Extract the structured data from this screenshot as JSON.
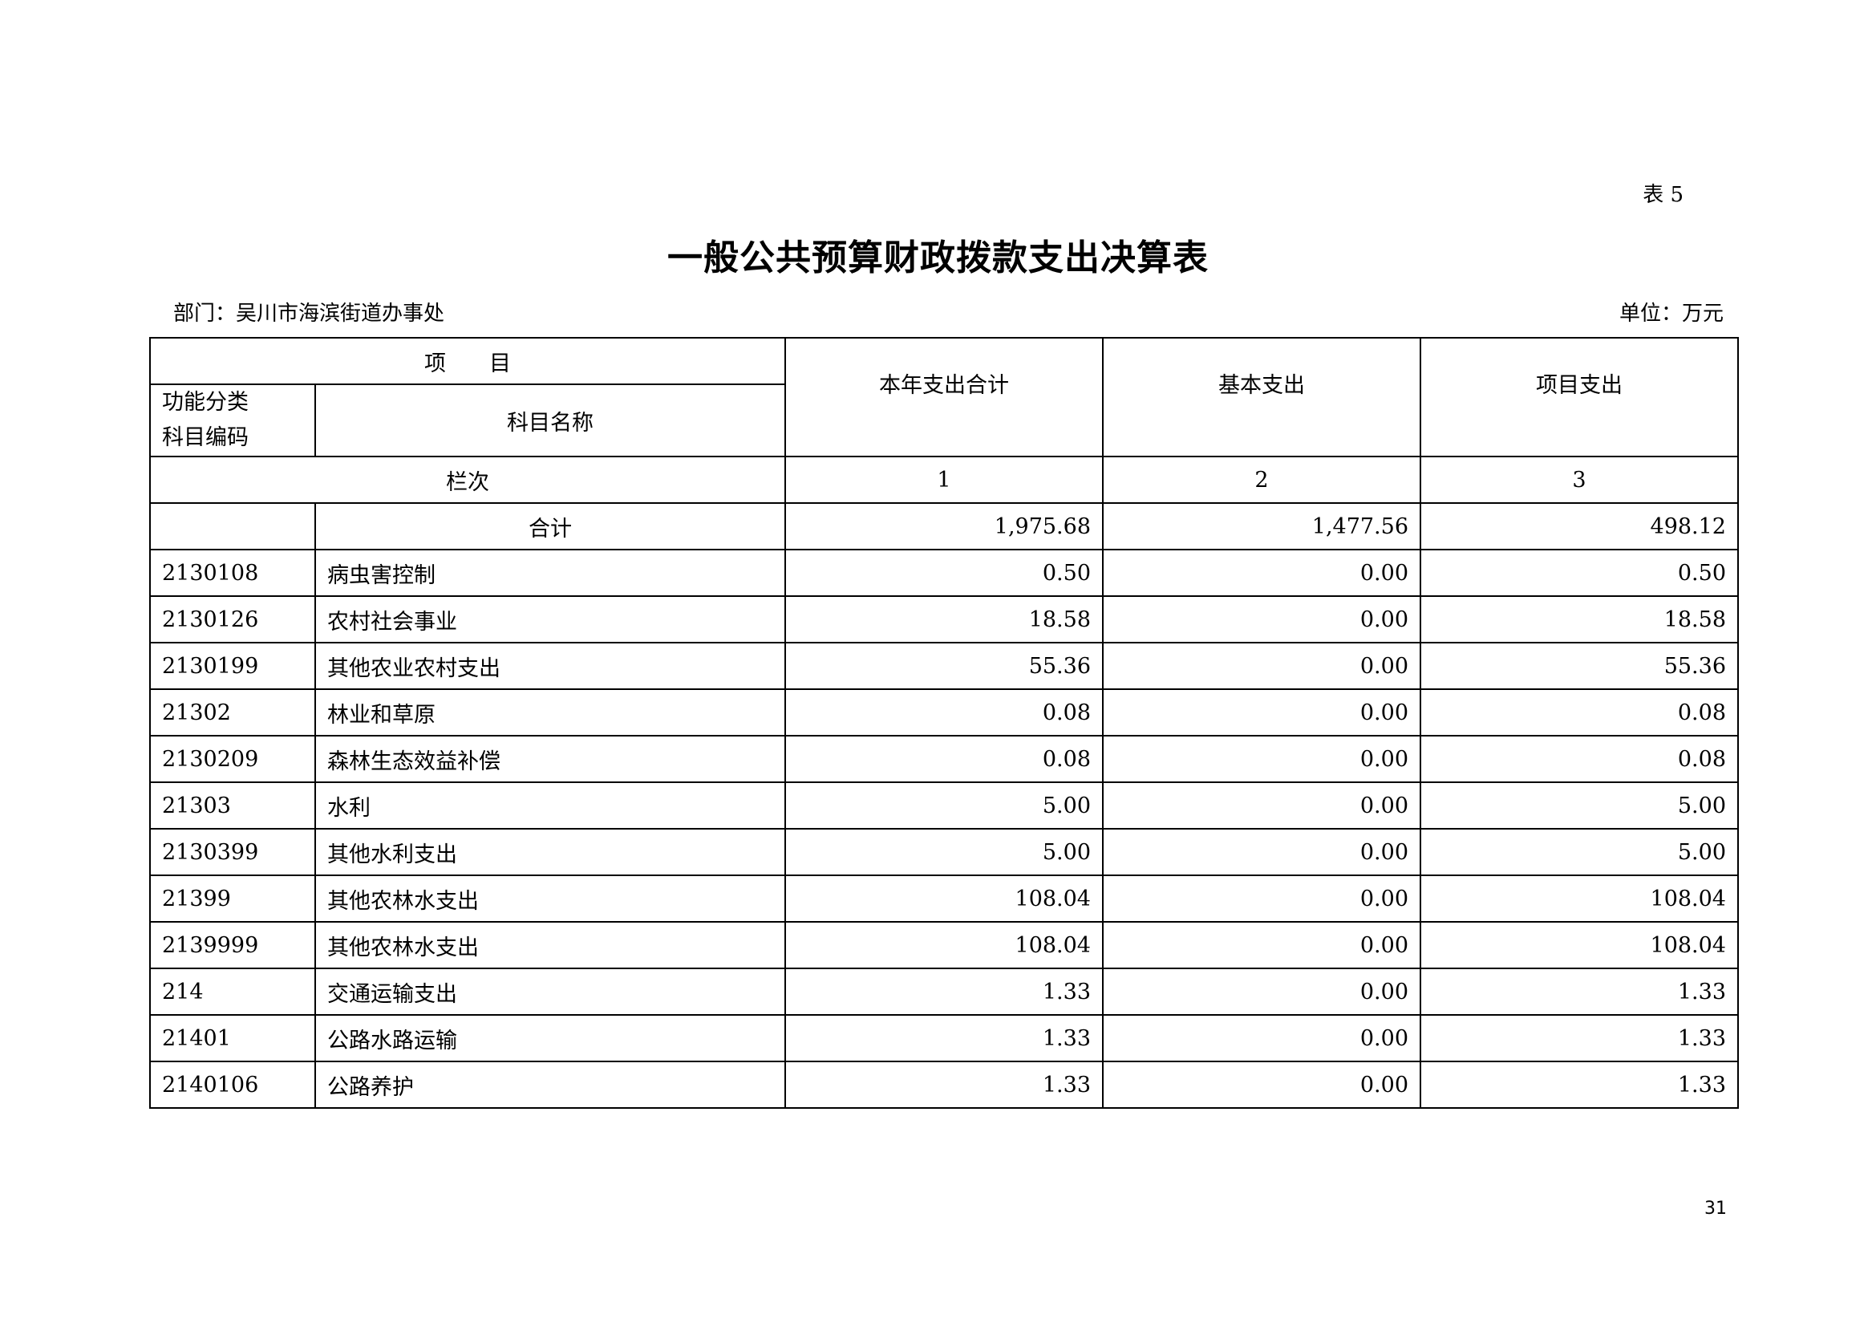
{
  "table_label": "表 5",
  "title": "一般公共预算财政拨款支出决算表",
  "department": "部门：吴川市海滨街道办事处",
  "unit": "单位：万元",
  "header": {
    "item": "项　　目",
    "code_line1": "功能分类",
    "code_line2": "科目编码",
    "name": "科目名称",
    "total": "本年支出合计",
    "basic": "基本支出",
    "project": "项目支出",
    "row_index_label": "栏次",
    "col1": "1",
    "col2": "2",
    "col3": "3"
  },
  "total_row": {
    "label": "合计",
    "total": "1,975.68",
    "basic": "1,477.56",
    "project": "498.12"
  },
  "rows": [
    {
      "code": "2130108",
      "name": "病虫害控制",
      "total": "0.50",
      "basic": "0.00",
      "project": "0.50"
    },
    {
      "code": "2130126",
      "name": "农村社会事业",
      "total": "18.58",
      "basic": "0.00",
      "project": "18.58"
    },
    {
      "code": "2130199",
      "name": "其他农业农村支出",
      "total": "55.36",
      "basic": "0.00",
      "project": "55.36"
    },
    {
      "code": "21302",
      "name": "林业和草原",
      "total": "0.08",
      "basic": "0.00",
      "project": "0.08"
    },
    {
      "code": "2130209",
      "name": "森林生态效益补偿",
      "total": "0.08",
      "basic": "0.00",
      "project": "0.08"
    },
    {
      "code": "21303",
      "name": "水利",
      "total": "5.00",
      "basic": "0.00",
      "project": "5.00"
    },
    {
      "code": "2130399",
      "name": "其他水利支出",
      "total": "5.00",
      "basic": "0.00",
      "project": "5.00"
    },
    {
      "code": "21399",
      "name": "其他农林水支出",
      "total": "108.04",
      "basic": "0.00",
      "project": "108.04"
    },
    {
      "code": "2139999",
      "name": "其他农林水支出",
      "total": "108.04",
      "basic": "0.00",
      "project": "108.04"
    },
    {
      "code": "214",
      "name": "交通运输支出",
      "total": "1.33",
      "basic": "0.00",
      "project": "1.33"
    },
    {
      "code": "21401",
      "name": "公路水路运输",
      "total": "1.33",
      "basic": "0.00",
      "project": "1.33"
    },
    {
      "code": "2140106",
      "name": "公路养护",
      "total": "1.33",
      "basic": "0.00",
      "project": "1.33"
    }
  ],
  "page_number": "31"
}
